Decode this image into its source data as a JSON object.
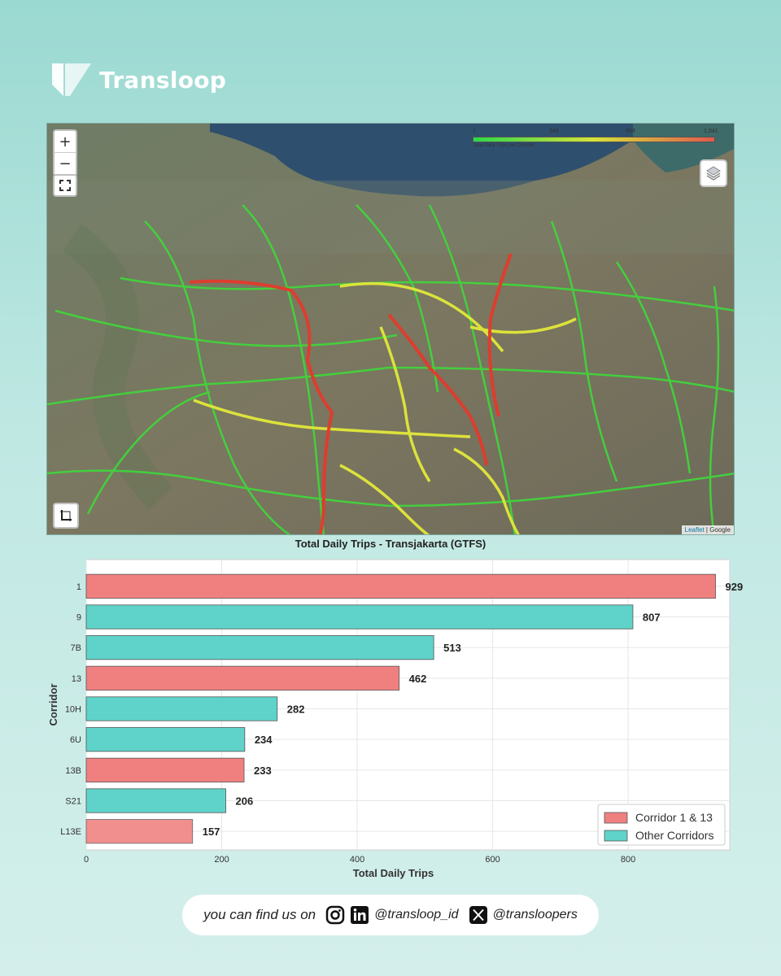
{
  "brand": {
    "name": "Transloop"
  },
  "map": {
    "zoom_in": "+",
    "zoom_out": "−",
    "legend": {
      "ticks": [
        "1",
        "348",
        "694",
        "1,041"
      ],
      "caption": "Total Daily Trips per Corridor"
    },
    "attribution": {
      "leaflet": "Leaflet",
      "sep": " | ",
      "provider": "Google"
    }
  },
  "chart_data": {
    "type": "bar",
    "orientation": "horizontal",
    "title": "Total Daily Trips - Transjakarta (GTFS)",
    "xlabel": "Total Daily Trips",
    "ylabel": "Corridor",
    "xlim": [
      0,
      950
    ],
    "xticks": [
      "0",
      "200",
      "400",
      "600",
      "800"
    ],
    "grid": true,
    "legend_position": "bottom-right",
    "colors": {
      "Corridor 1 & 13": "#f08080",
      "Other Corridors": "#5fd3c9"
    },
    "series": [
      {
        "name": "Corridor 1 & 13"
      },
      {
        "name": "Other Corridors"
      }
    ],
    "categories": [
      "1",
      "9",
      "7B",
      "13",
      "10H",
      "6U",
      "13B",
      "S21",
      "L13E"
    ],
    "values": [
      929,
      807,
      513,
      462,
      282,
      234,
      233,
      206,
      157
    ],
    "value_labels": [
      "929",
      "807",
      "513",
      "462",
      "282",
      "234",
      "233",
      "206",
      "157"
    ],
    "groups": [
      "Corridor 1 & 13",
      "Other Corridors",
      "Other Corridors",
      "Corridor 1 & 13",
      "Other Corridors",
      "Other Corridors",
      "Corridor 1 & 13",
      "Other Corridors",
      "Corridor 1 & 13"
    ]
  },
  "footer": {
    "lead": "you can find us on",
    "handle_1": "@transloop_id",
    "handle_2": "@transloopers"
  }
}
